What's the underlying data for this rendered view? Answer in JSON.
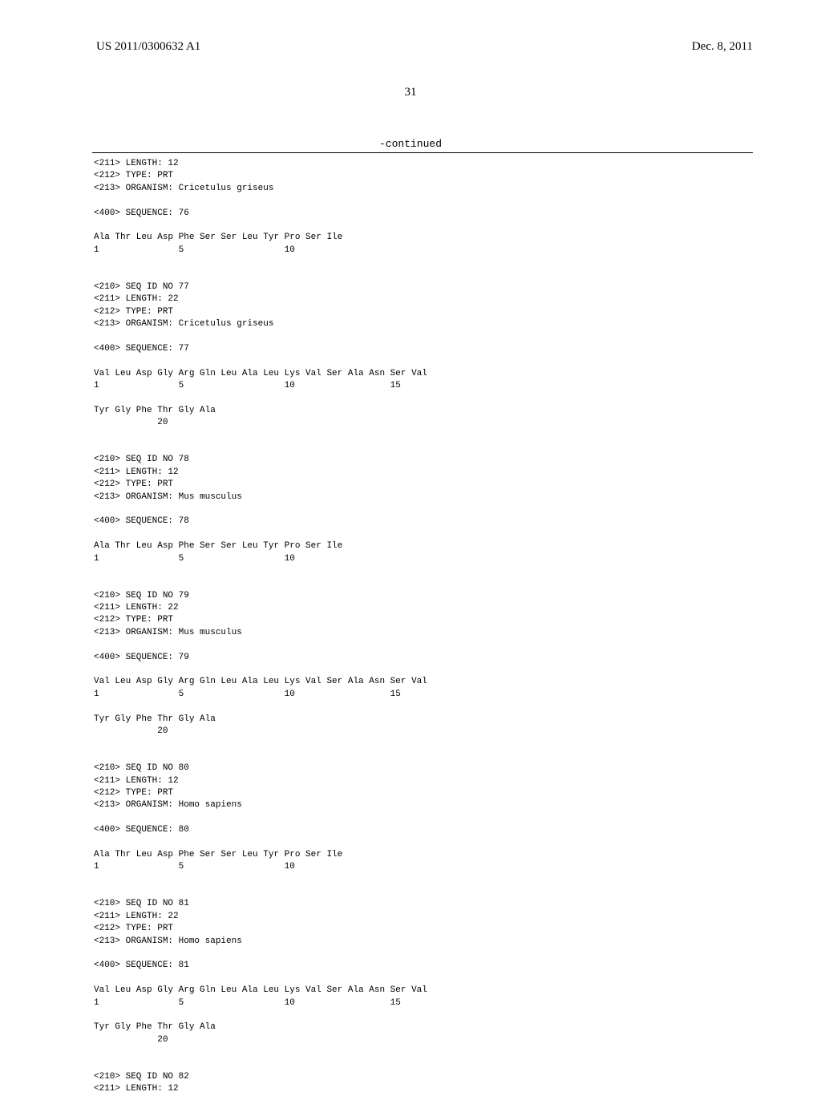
{
  "header": {
    "pub_number": "US 2011/0300632 A1",
    "pub_date": "Dec. 8, 2011"
  },
  "page_number": "31",
  "continued_label": "-continued",
  "entries": [
    {
      "meta": [
        "<211> LENGTH: 12",
        "<212> TYPE: PRT",
        "<213> ORGANISM: Cricetulus griseus"
      ],
      "seq_label": "<400> SEQUENCE: 76",
      "seq_lines": [
        "Ala Thr Leu Asp Phe Ser Ser Leu Tyr Pro Ser Ile",
        "1               5                   10"
      ]
    },
    {
      "meta": [
        "<210> SEQ ID NO 77",
        "<211> LENGTH: 22",
        "<212> TYPE: PRT",
        "<213> ORGANISM: Cricetulus griseus"
      ],
      "seq_label": "<400> SEQUENCE: 77",
      "seq_lines": [
        "Val Leu Asp Gly Arg Gln Leu Ala Leu Lys Val Ser Ala Asn Ser Val",
        "1               5                   10                  15",
        "",
        "Tyr Gly Phe Thr Gly Ala",
        "            20"
      ]
    },
    {
      "meta": [
        "<210> SEQ ID NO 78",
        "<211> LENGTH: 12",
        "<212> TYPE: PRT",
        "<213> ORGANISM: Mus musculus"
      ],
      "seq_label": "<400> SEQUENCE: 78",
      "seq_lines": [
        "Ala Thr Leu Asp Phe Ser Ser Leu Tyr Pro Ser Ile",
        "1               5                   10"
      ]
    },
    {
      "meta": [
        "<210> SEQ ID NO 79",
        "<211> LENGTH: 22",
        "<212> TYPE: PRT",
        "<213> ORGANISM: Mus musculus"
      ],
      "seq_label": "<400> SEQUENCE: 79",
      "seq_lines": [
        "Val Leu Asp Gly Arg Gln Leu Ala Leu Lys Val Ser Ala Asn Ser Val",
        "1               5                   10                  15",
        "",
        "Tyr Gly Phe Thr Gly Ala",
        "            20"
      ]
    },
    {
      "meta": [
        "<210> SEQ ID NO 80",
        "<211> LENGTH: 12",
        "<212> TYPE: PRT",
        "<213> ORGANISM: Homo sapiens"
      ],
      "seq_label": "<400> SEQUENCE: 80",
      "seq_lines": [
        "Ala Thr Leu Asp Phe Ser Ser Leu Tyr Pro Ser Ile",
        "1               5                   10"
      ]
    },
    {
      "meta": [
        "<210> SEQ ID NO 81",
        "<211> LENGTH: 22",
        "<212> TYPE: PRT",
        "<213> ORGANISM: Homo sapiens"
      ],
      "seq_label": "<400> SEQUENCE: 81",
      "seq_lines": [
        "Val Leu Asp Gly Arg Gln Leu Ala Leu Lys Val Ser Ala Asn Ser Val",
        "1               5                   10                  15",
        "",
        "Tyr Gly Phe Thr Gly Ala",
        "            20"
      ]
    },
    {
      "meta": [
        "<210> SEQ ID NO 82",
        "<211> LENGTH: 12"
      ],
      "seq_label": "",
      "seq_lines": []
    }
  ]
}
